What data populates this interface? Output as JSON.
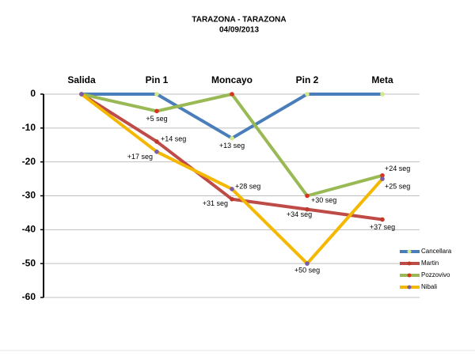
{
  "chart_data": {
    "type": "line",
    "title": "TARAZONA - TARAZONA",
    "subtitle": "04/09/2013",
    "categories": [
      "Salida",
      "Pin 1",
      "Moncayo",
      "Pin 2",
      "Meta"
    ],
    "series": [
      {
        "name": "Cancellara",
        "color": "#4a7ebb",
        "marker_color": "#d4e88a",
        "values": [
          0,
          0,
          -13,
          0,
          0
        ],
        "value_labels": [
          null,
          null,
          "+13 seg",
          null,
          null
        ]
      },
      {
        "name": "Martin",
        "color": "#be4b48",
        "marker_color": "#c0392b",
        "values": [
          0,
          -14,
          -31,
          -34,
          -37
        ],
        "value_labels": [
          null,
          "+14 seg",
          "+31 seg",
          "+34 seg",
          "+37 seg"
        ]
      },
      {
        "name": "Pozzovivo",
        "color": "#98b954",
        "marker_color": "#d9341f",
        "values": [
          0,
          -5,
          0,
          -30,
          -24
        ],
        "value_labels": [
          null,
          "+5 seg",
          null,
          "+30 seg",
          "+24 seg"
        ]
      },
      {
        "name": "Nibali",
        "color": "#f5b800",
        "marker_color": "#7b5ea8",
        "values": [
          0,
          -17,
          -28,
          -50,
          -25
        ],
        "value_labels": [
          null,
          "+17 seg",
          "+28 seg",
          "+50 seg",
          "+25 seg"
        ]
      }
    ],
    "ylim": [
      -60,
      0
    ],
    "yticks": [
      0,
      -10,
      -20,
      -30,
      -40,
      -50,
      -60
    ],
    "grid": true,
    "legend": "right"
  }
}
